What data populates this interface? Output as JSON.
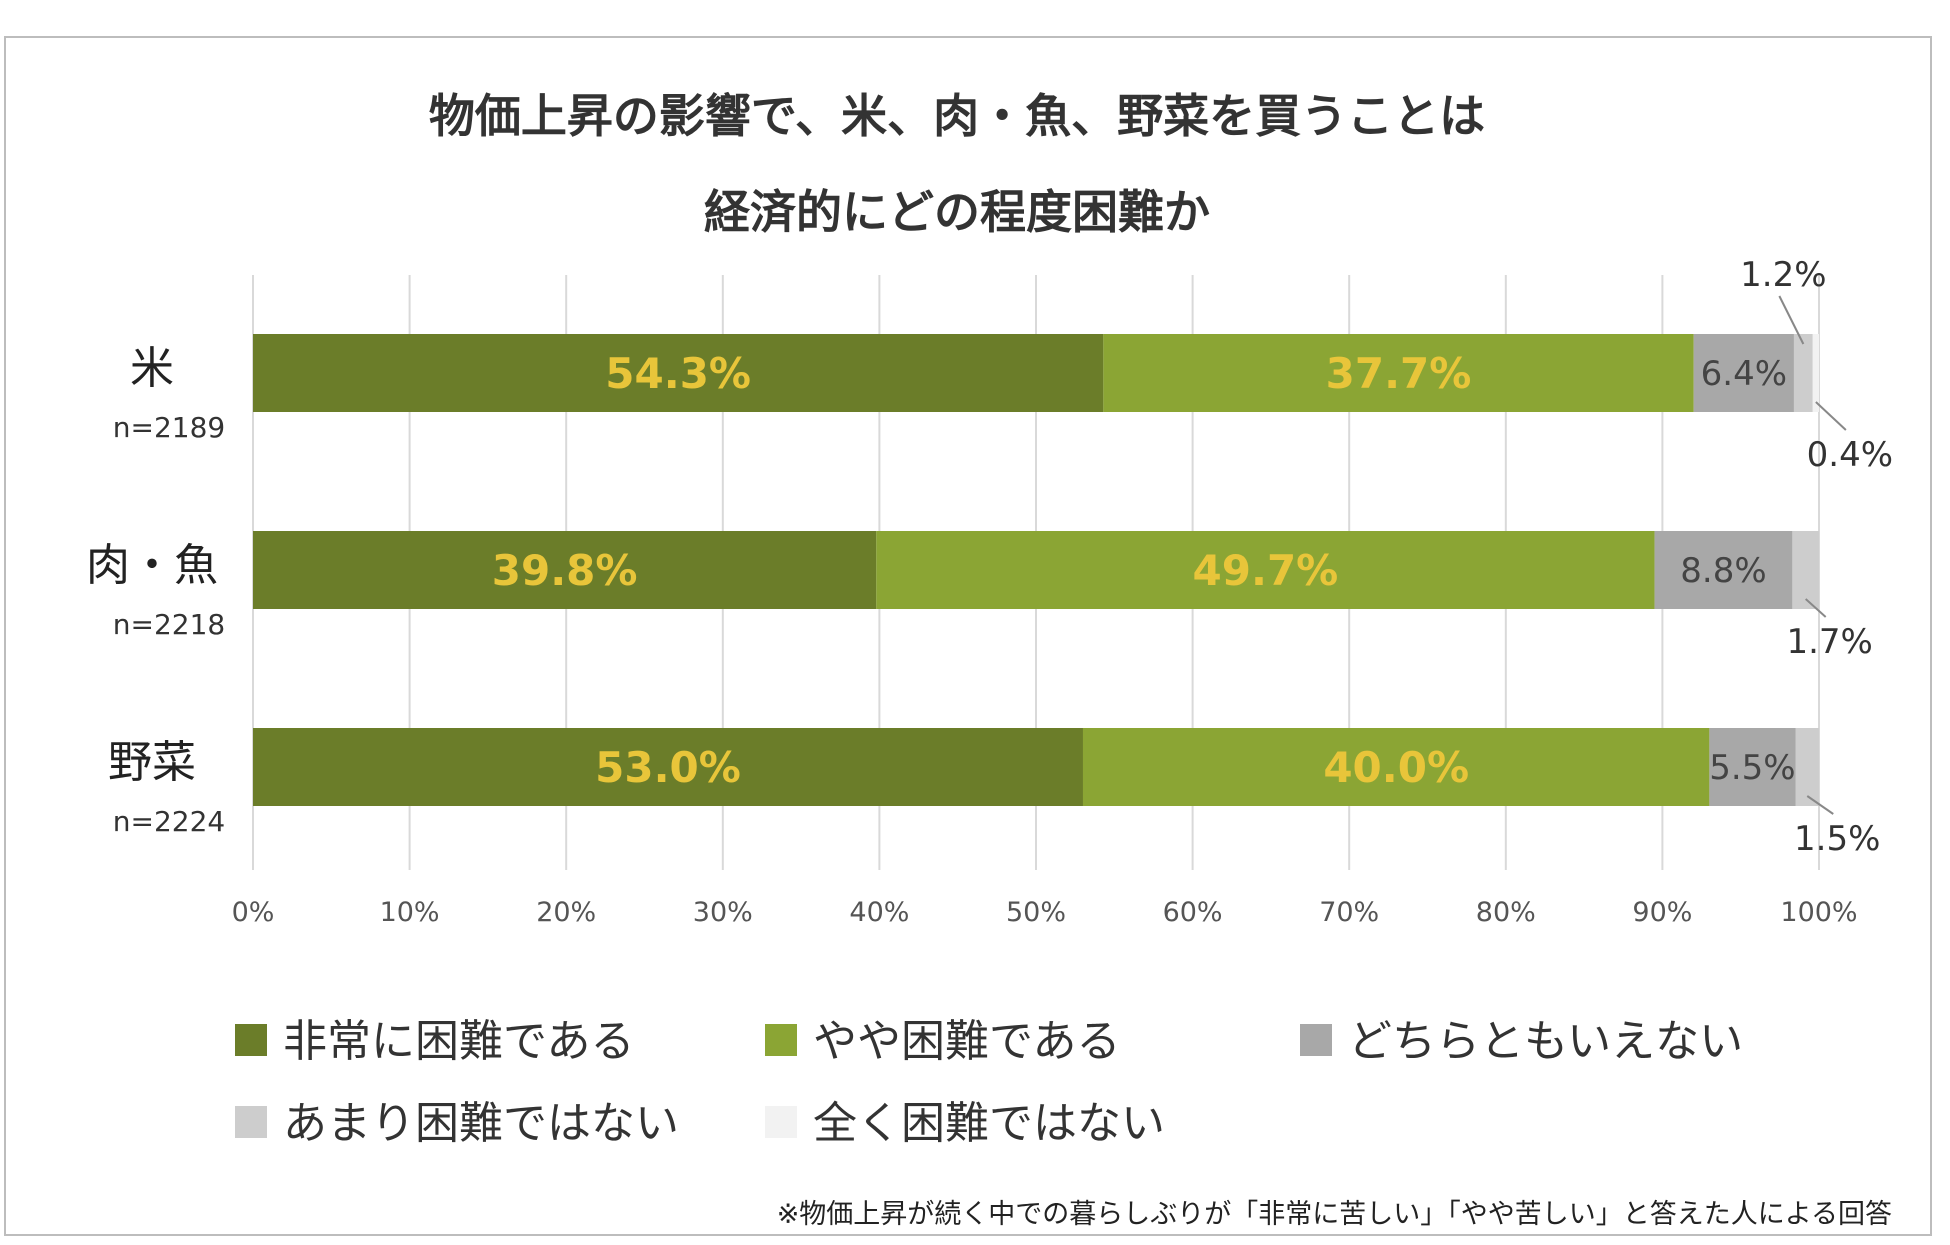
{
  "chart_data": {
    "type": "bar",
    "orientation": "horizontal",
    "stacked": true,
    "title": [
      "物価上昇の影響で、米、肉・魚、野菜を買うことは",
      "経済的にどの程度困難か"
    ],
    "categories": [
      "米",
      "肉・魚",
      "野菜"
    ],
    "sample_sizes": [
      "n=2189",
      "n=2218",
      "n=2224"
    ],
    "series": [
      {
        "name": "非常に困難である",
        "color": "#6b7d29",
        "values": [
          54.3,
          39.8,
          53.0
        ],
        "labels": [
          "54.3%",
          "39.8%",
          "53.0%"
        ]
      },
      {
        "name": "やや困難である",
        "color": "#8ba534",
        "values": [
          37.7,
          49.7,
          40.0
        ],
        "labels": [
          "37.7%",
          "49.7%",
          "40.0%"
        ]
      },
      {
        "name": "どちらともいえない",
        "color": "#a8a8a8",
        "values": [
          6.4,
          8.8,
          5.5
        ],
        "labels": [
          "6.4%",
          "8.8%",
          "5.5%"
        ]
      },
      {
        "name": "あまり困難ではない",
        "color": "#cdcdcd",
        "values": [
          1.2,
          1.7,
          1.5
        ],
        "labels": [
          "1.2%",
          "1.7%",
          "1.5%"
        ]
      },
      {
        "name": "全く困難ではない",
        "color": "#f2f2f2",
        "values": [
          0.4,
          0.0,
          0.0
        ],
        "labels": [
          "0.4%",
          "",
          ""
        ]
      }
    ],
    "xlim": [
      0,
      100
    ],
    "x_ticks": [
      "0%",
      "10%",
      "20%",
      "30%",
      "40%",
      "50%",
      "60%",
      "70%",
      "80%",
      "90%",
      "100%"
    ],
    "grid": true,
    "legend_position": "bottom",
    "footnote": "※物価上昇が続く中での暮らしぶりが「非常に苦しい」「やや苦しい」と答えた人による回答"
  }
}
